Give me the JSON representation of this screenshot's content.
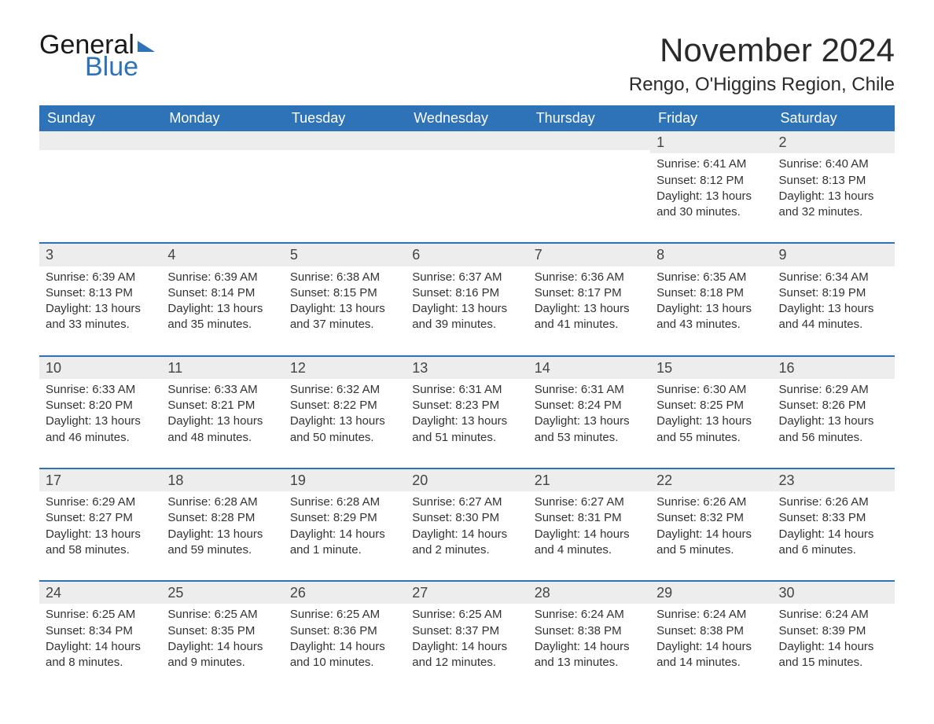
{
  "logo": {
    "general": "General",
    "blue": "Blue"
  },
  "title": "November 2024",
  "location": "Rengo, O'Higgins Region, Chile",
  "colors": {
    "header_bg": "#2e72b8",
    "header_fg": "#ffffff",
    "daynum_bg": "#ededed",
    "row_border": "#2e72b8",
    "text": "#333333",
    "page_bg": "#ffffff",
    "logo_blue": "#2e72b8"
  },
  "typography": {
    "title_fontsize": 42,
    "location_fontsize": 24,
    "header_fontsize": 18,
    "body_fontsize": 15,
    "daynum_fontsize": 18
  },
  "weekdays": [
    "Sunday",
    "Monday",
    "Tuesday",
    "Wednesday",
    "Thursday",
    "Friday",
    "Saturday"
  ],
  "weeks": [
    [
      null,
      null,
      null,
      null,
      null,
      {
        "n": "1",
        "sunrise": "Sunrise: 6:41 AM",
        "sunset": "Sunset: 8:12 PM",
        "daylight": "Daylight: 13 hours and 30 minutes."
      },
      {
        "n": "2",
        "sunrise": "Sunrise: 6:40 AM",
        "sunset": "Sunset: 8:13 PM",
        "daylight": "Daylight: 13 hours and 32 minutes."
      }
    ],
    [
      {
        "n": "3",
        "sunrise": "Sunrise: 6:39 AM",
        "sunset": "Sunset: 8:13 PM",
        "daylight": "Daylight: 13 hours and 33 minutes."
      },
      {
        "n": "4",
        "sunrise": "Sunrise: 6:39 AM",
        "sunset": "Sunset: 8:14 PM",
        "daylight": "Daylight: 13 hours and 35 minutes."
      },
      {
        "n": "5",
        "sunrise": "Sunrise: 6:38 AM",
        "sunset": "Sunset: 8:15 PM",
        "daylight": "Daylight: 13 hours and 37 minutes."
      },
      {
        "n": "6",
        "sunrise": "Sunrise: 6:37 AM",
        "sunset": "Sunset: 8:16 PM",
        "daylight": "Daylight: 13 hours and 39 minutes."
      },
      {
        "n": "7",
        "sunrise": "Sunrise: 6:36 AM",
        "sunset": "Sunset: 8:17 PM",
        "daylight": "Daylight: 13 hours and 41 minutes."
      },
      {
        "n": "8",
        "sunrise": "Sunrise: 6:35 AM",
        "sunset": "Sunset: 8:18 PM",
        "daylight": "Daylight: 13 hours and 43 minutes."
      },
      {
        "n": "9",
        "sunrise": "Sunrise: 6:34 AM",
        "sunset": "Sunset: 8:19 PM",
        "daylight": "Daylight: 13 hours and 44 minutes."
      }
    ],
    [
      {
        "n": "10",
        "sunrise": "Sunrise: 6:33 AM",
        "sunset": "Sunset: 8:20 PM",
        "daylight": "Daylight: 13 hours and 46 minutes."
      },
      {
        "n": "11",
        "sunrise": "Sunrise: 6:33 AM",
        "sunset": "Sunset: 8:21 PM",
        "daylight": "Daylight: 13 hours and 48 minutes."
      },
      {
        "n": "12",
        "sunrise": "Sunrise: 6:32 AM",
        "sunset": "Sunset: 8:22 PM",
        "daylight": "Daylight: 13 hours and 50 minutes."
      },
      {
        "n": "13",
        "sunrise": "Sunrise: 6:31 AM",
        "sunset": "Sunset: 8:23 PM",
        "daylight": "Daylight: 13 hours and 51 minutes."
      },
      {
        "n": "14",
        "sunrise": "Sunrise: 6:31 AM",
        "sunset": "Sunset: 8:24 PM",
        "daylight": "Daylight: 13 hours and 53 minutes."
      },
      {
        "n": "15",
        "sunrise": "Sunrise: 6:30 AM",
        "sunset": "Sunset: 8:25 PM",
        "daylight": "Daylight: 13 hours and 55 minutes."
      },
      {
        "n": "16",
        "sunrise": "Sunrise: 6:29 AM",
        "sunset": "Sunset: 8:26 PM",
        "daylight": "Daylight: 13 hours and 56 minutes."
      }
    ],
    [
      {
        "n": "17",
        "sunrise": "Sunrise: 6:29 AM",
        "sunset": "Sunset: 8:27 PM",
        "daylight": "Daylight: 13 hours and 58 minutes."
      },
      {
        "n": "18",
        "sunrise": "Sunrise: 6:28 AM",
        "sunset": "Sunset: 8:28 PM",
        "daylight": "Daylight: 13 hours and 59 minutes."
      },
      {
        "n": "19",
        "sunrise": "Sunrise: 6:28 AM",
        "sunset": "Sunset: 8:29 PM",
        "daylight": "Daylight: 14 hours and 1 minute."
      },
      {
        "n": "20",
        "sunrise": "Sunrise: 6:27 AM",
        "sunset": "Sunset: 8:30 PM",
        "daylight": "Daylight: 14 hours and 2 minutes."
      },
      {
        "n": "21",
        "sunrise": "Sunrise: 6:27 AM",
        "sunset": "Sunset: 8:31 PM",
        "daylight": "Daylight: 14 hours and 4 minutes."
      },
      {
        "n": "22",
        "sunrise": "Sunrise: 6:26 AM",
        "sunset": "Sunset: 8:32 PM",
        "daylight": "Daylight: 14 hours and 5 minutes."
      },
      {
        "n": "23",
        "sunrise": "Sunrise: 6:26 AM",
        "sunset": "Sunset: 8:33 PM",
        "daylight": "Daylight: 14 hours and 6 minutes."
      }
    ],
    [
      {
        "n": "24",
        "sunrise": "Sunrise: 6:25 AM",
        "sunset": "Sunset: 8:34 PM",
        "daylight": "Daylight: 14 hours and 8 minutes."
      },
      {
        "n": "25",
        "sunrise": "Sunrise: 6:25 AM",
        "sunset": "Sunset: 8:35 PM",
        "daylight": "Daylight: 14 hours and 9 minutes."
      },
      {
        "n": "26",
        "sunrise": "Sunrise: 6:25 AM",
        "sunset": "Sunset: 8:36 PM",
        "daylight": "Daylight: 14 hours and 10 minutes."
      },
      {
        "n": "27",
        "sunrise": "Sunrise: 6:25 AM",
        "sunset": "Sunset: 8:37 PM",
        "daylight": "Daylight: 14 hours and 12 minutes."
      },
      {
        "n": "28",
        "sunrise": "Sunrise: 6:24 AM",
        "sunset": "Sunset: 8:38 PM",
        "daylight": "Daylight: 14 hours and 13 minutes."
      },
      {
        "n": "29",
        "sunrise": "Sunrise: 6:24 AM",
        "sunset": "Sunset: 8:38 PM",
        "daylight": "Daylight: 14 hours and 14 minutes."
      },
      {
        "n": "30",
        "sunrise": "Sunrise: 6:24 AM",
        "sunset": "Sunset: 8:39 PM",
        "daylight": "Daylight: 14 hours and 15 minutes."
      }
    ]
  ]
}
